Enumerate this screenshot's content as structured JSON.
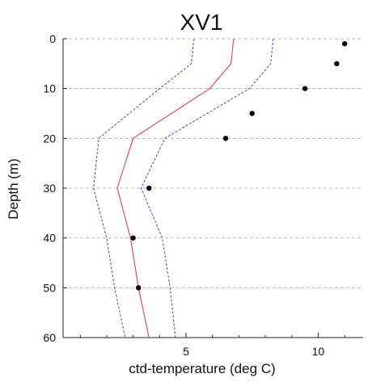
{
  "chart_data": {
    "type": "line",
    "title": "XV1",
    "xlabel": "ctd-temperature (deg C)",
    "ylabel": "Depth (m)",
    "xlim": [
      0.35,
      11.7
    ],
    "ylim": [
      0,
      60
    ],
    "y_inverted": true,
    "grid": "horizontal dashed",
    "x_ticks": [
      5,
      10
    ],
    "y_ticks": [
      0,
      10,
      20,
      30,
      40,
      50,
      60
    ],
    "colors": {
      "mean_line": "#d9534f",
      "bounds": "#3b4cc0",
      "points": "#000000",
      "grid": "#b8b8b8",
      "axis": "#222222"
    },
    "series": [
      {
        "key": "mean",
        "style": "solid",
        "x": [
          6.8,
          6.7,
          5.9,
          3.0,
          2.4,
          2.9,
          3.2,
          3.6
        ],
        "y": [
          0,
          5,
          10,
          20,
          30,
          40,
          50,
          60
        ]
      },
      {
        "key": "lower",
        "style": "dashed",
        "x": [
          5.3,
          5.2,
          4.0,
          1.7,
          1.5,
          2.0,
          2.3,
          2.7
        ],
        "y": [
          0,
          5,
          10,
          20,
          30,
          40,
          50,
          60
        ]
      },
      {
        "key": "upper",
        "style": "dashed",
        "x": [
          8.3,
          8.2,
          7.4,
          4.2,
          3.3,
          4.1,
          4.4,
          4.6
        ],
        "y": [
          0,
          5,
          10,
          20,
          30,
          40,
          50,
          60
        ]
      },
      {
        "key": "observed",
        "style": "points",
        "x": [
          11.0,
          10.7,
          9.5,
          7.5,
          6.5,
          3.6,
          3.0,
          3.2
        ],
        "y": [
          1,
          5,
          10,
          15,
          20,
          30,
          40,
          50
        ]
      }
    ]
  }
}
